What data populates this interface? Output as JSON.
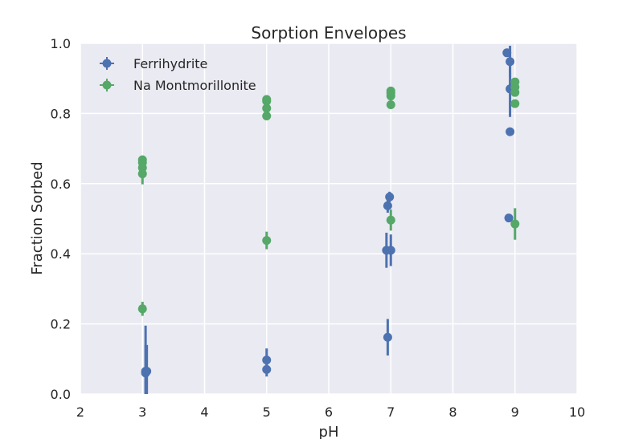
{
  "chart_data": {
    "type": "scatter",
    "title": "Sorption Envelopes",
    "xlabel": "pH",
    "ylabel": "Fraction Sorbed",
    "xlim": [
      2,
      10
    ],
    "ylim": [
      0.0,
      1.0
    ],
    "xticks": [
      "2",
      "3",
      "4",
      "5",
      "6",
      "7",
      "8",
      "9",
      "10"
    ],
    "yticks": [
      "0.0",
      "0.2",
      "0.4",
      "0.6",
      "0.8",
      "1.0"
    ],
    "grid": true,
    "background": "#EAEAF2",
    "legend_position": "top-left",
    "error_bars": true,
    "series": [
      {
        "name": "Ferrihydrite",
        "color": "#4C72B0",
        "points": [
          {
            "x": 3.05,
            "y": 0.065,
            "err": 0.13
          },
          {
            "x": 3.07,
            "y": 0.065,
            "err": 0.075
          },
          {
            "x": 3.05,
            "y": 0.06,
            "err": 0.08
          },
          {
            "x": 5.0,
            "y": 0.097,
            "err": 0.033
          },
          {
            "x": 5.0,
            "y": 0.07,
            "err": 0.02
          },
          {
            "x": 6.95,
            "y": 0.162,
            "err": 0.052
          },
          {
            "x": 6.93,
            "y": 0.41,
            "err": 0.05
          },
          {
            "x": 7.0,
            "y": 0.41,
            "err": 0.045
          },
          {
            "x": 6.95,
            "y": 0.537,
            "err": 0.02
          },
          {
            "x": 6.98,
            "y": 0.562,
            "err": 0.015
          },
          {
            "x": 8.9,
            "y": 0.502,
            "err": 0.01
          },
          {
            "x": 8.92,
            "y": 0.748,
            "err": 0.01
          },
          {
            "x": 8.92,
            "y": 0.87,
            "err": 0.08
          },
          {
            "x": 8.92,
            "y": 0.948,
            "err": 0.045
          },
          {
            "x": 8.87,
            "y": 0.973,
            "err": 0.01
          }
        ]
      },
      {
        "name": "Na Montmorillonite",
        "color": "#55A868",
        "points": [
          {
            "x": 3.0,
            "y": 0.243,
            "err": 0.02
          },
          {
            "x": 3.0,
            "y": 0.628,
            "err": 0.03
          },
          {
            "x": 3.0,
            "y": 0.645,
            "err": 0.02
          },
          {
            "x": 3.0,
            "y": 0.66,
            "err": 0.015
          },
          {
            "x": 3.0,
            "y": 0.668,
            "err": 0.012
          },
          {
            "x": 5.0,
            "y": 0.438,
            "err": 0.025
          },
          {
            "x": 5.0,
            "y": 0.793,
            "err": 0.01
          },
          {
            "x": 5.0,
            "y": 0.815,
            "err": 0.01
          },
          {
            "x": 5.0,
            "y": 0.835,
            "err": 0.01
          },
          {
            "x": 5.0,
            "y": 0.84,
            "err": 0.01
          },
          {
            "x": 7.0,
            "y": 0.496,
            "err": 0.03
          },
          {
            "x": 7.0,
            "y": 0.825,
            "err": 0.01
          },
          {
            "x": 7.0,
            "y": 0.85,
            "err": 0.01
          },
          {
            "x": 7.0,
            "y": 0.858,
            "err": 0.01
          },
          {
            "x": 7.0,
            "y": 0.864,
            "err": 0.01
          },
          {
            "x": 9.0,
            "y": 0.485,
            "err": 0.045
          },
          {
            "x": 9.0,
            "y": 0.828,
            "err": 0.01
          },
          {
            "x": 9.0,
            "y": 0.86,
            "err": 0.01
          },
          {
            "x": 9.0,
            "y": 0.875,
            "err": 0.01
          },
          {
            "x": 9.0,
            "y": 0.89,
            "err": 0.01
          }
        ]
      }
    ]
  }
}
